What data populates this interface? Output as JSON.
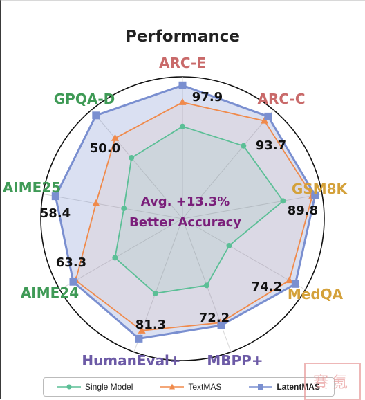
{
  "chart_data": {
    "type": "radar",
    "title": "Performance",
    "axes": [
      "ARC-E",
      "ARC-C",
      "GSM8K",
      "MedQA",
      "MBPP+",
      "HumanEval+",
      "AIME24",
      "AIME25",
      "GPQA-D"
    ],
    "axis_colors": [
      "#c96a6a",
      "#c96a6a",
      "#d4a13a",
      "#d4a13a",
      "#6c5aa6",
      "#6c5aa6",
      "#3f9a56",
      "#3f9a56",
      "#3f9a56"
    ],
    "series": [
      {
        "name": "Single Model",
        "color": "#5bbf96",
        "marker": "circle",
        "values": [
          0.65,
          0.67,
          0.72,
          0.38,
          0.5,
          0.56,
          0.55,
          0.42,
          0.56
        ]
      },
      {
        "name": "TextMAS",
        "color": "#f08a4b",
        "marker": "triangle",
        "values": [
          0.82,
          0.9,
          0.93,
          0.87,
          0.78,
          0.84,
          0.87,
          0.62,
          0.74
        ]
      },
      {
        "name": "LatentMAS",
        "color": "#7a8fd0",
        "marker": "square",
        "values": [
          0.94,
          0.94,
          0.95,
          0.92,
          0.8,
          0.9,
          0.89,
          0.91,
          0.95
        ]
      }
    ],
    "value_labels": [
      "97.9",
      "93.7",
      "89.8",
      "74.2",
      "72.2",
      "81.3",
      "63.3",
      "58.4",
      "50.0"
    ],
    "center_annotation": [
      "Avg. +13.3%",
      "Better Accuracy"
    ],
    "legend_position": "bottom"
  },
  "stamp_text": "賽氪"
}
